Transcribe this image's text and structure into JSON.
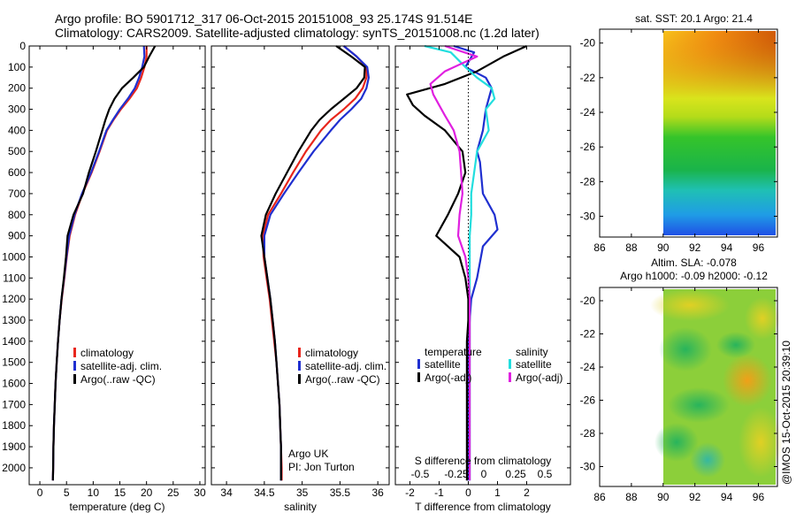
{
  "header": {
    "line1": "Argo profile: BO 5901712_317 06-Oct-2015 20151008_93 25.174S 91.514E",
    "line2": "Climatology: CARS2009. Satellite-adjusted climatology: synTS_20151008.nc (1.2d later)"
  },
  "credit": "@IMOS 15-Oct-2015 20:39:10",
  "colors": {
    "clim": "#e8261c",
    "sat": "#1f2fd0",
    "argo": "#000000",
    "sat_s": "#22dede",
    "argo_s": "#e020e0"
  },
  "chart_data": [
    {
      "type": "line",
      "name": "temperature-profile",
      "xlabel": "temperature (deg C)",
      "ylabel": "",
      "xlim": [
        -2,
        31
      ],
      "ylim": [
        0,
        2080
      ],
      "xticks": [
        0,
        5,
        10,
        15,
        20,
        25,
        30
      ],
      "yticks": [
        0,
        100,
        200,
        300,
        400,
        500,
        600,
        700,
        800,
        900,
        1000,
        1100,
        1200,
        1300,
        1400,
        1500,
        1600,
        1700,
        1800,
        1900,
        2000
      ],
      "legend": [
        "climatology",
        "satellite-adj. clim.",
        "Argo(..raw -QC)"
      ],
      "series": [
        {
          "name": "climatology",
          "color": "clim",
          "x": [
            20,
            20,
            19.6,
            19,
            18.2,
            16.8,
            15.2,
            13.8,
            12.6,
            11.2,
            9.7,
            8,
            6.6,
            5.6,
            5.05,
            4.6,
            4.1,
            3.7,
            3.4,
            3.15,
            2.95,
            2.8,
            2.65,
            2.55,
            2.5,
            2.45
          ],
          "y": [
            0,
            50,
            100,
            150,
            200,
            250,
            300,
            350,
            400,
            500,
            600,
            700,
            800,
            900,
            1000,
            1100,
            1200,
            1300,
            1400,
            1500,
            1600,
            1700,
            1800,
            1900,
            2000,
            2060
          ]
        },
        {
          "name": "satellite-adj. clim.",
          "color": "sat",
          "x": [
            19.5,
            19.6,
            19.2,
            18.6,
            17.8,
            16.5,
            15,
            13.7,
            12.5,
            11.1,
            9.6,
            7.9,
            6.5,
            5.5,
            5,
            4.55,
            4.05,
            3.7,
            3.4,
            3.15,
            2.95,
            2.8,
            2.65,
            2.55,
            2.5,
            2.45
          ],
          "y": [
            0,
            50,
            100,
            150,
            200,
            250,
            300,
            350,
            400,
            500,
            600,
            700,
            800,
            900,
            1000,
            1100,
            1200,
            1300,
            1400,
            1500,
            1600,
            1700,
            1800,
            1900,
            2000,
            2060
          ]
        },
        {
          "name": "Argo(..raw -QC)",
          "color": "argo",
          "x": [
            21.6,
            20.5,
            19.5,
            17.5,
            15.4,
            14,
            13,
            12.3,
            11.7,
            10.5,
            9.2,
            8.1,
            6.3,
            5.2,
            4.9,
            4.5,
            4.05,
            3.7,
            3.4,
            3.15,
            2.95,
            2.8,
            2.65,
            2.55,
            2.5,
            2.45
          ],
          "y": [
            0,
            50,
            100,
            150,
            200,
            250,
            300,
            350,
            400,
            500,
            600,
            700,
            800,
            900,
            1000,
            1100,
            1200,
            1300,
            1400,
            1500,
            1600,
            1700,
            1800,
            1900,
            2000,
            2060
          ]
        }
      ]
    },
    {
      "type": "line",
      "name": "salinity-profile",
      "xlabel": "salinity",
      "ylabel": "",
      "xlim": [
        33.8,
        36.15
      ],
      "ylim": [
        0,
        2080
      ],
      "xticks": [
        34,
        34.5,
        35,
        35.5,
        36
      ],
      "legend": [
        "climatology",
        "satellite-adj. clim.",
        "Argo(..raw -QC)"
      ],
      "annotation": [
        "Argo UK",
        "PI: Jon Turton"
      ],
      "series": [
        {
          "name": "climatology",
          "color": "clim",
          "x": [
            35.55,
            35.72,
            35.85,
            35.85,
            35.8,
            35.7,
            35.55,
            35.38,
            35.25,
            35.05,
            34.88,
            34.72,
            34.55,
            34.48,
            34.49,
            34.53,
            34.57,
            34.6,
            34.63,
            34.66,
            34.68,
            34.7,
            34.71,
            34.72,
            34.73,
            34.73
          ],
          "y": [
            0,
            50,
            100,
            150,
            200,
            250,
            300,
            350,
            400,
            500,
            600,
            700,
            800,
            900,
            1000,
            1100,
            1200,
            1300,
            1400,
            1500,
            1600,
            1700,
            1800,
            1900,
            2000,
            2060
          ]
        },
        {
          "name": "satellite-adj. clim.",
          "color": "sat",
          "x": [
            35.55,
            35.72,
            35.86,
            35.88,
            35.85,
            35.78,
            35.65,
            35.5,
            35.38,
            35.15,
            34.95,
            34.76,
            34.58,
            34.5,
            34.5,
            34.54,
            34.58,
            34.61,
            34.64,
            34.66,
            34.68,
            34.7,
            34.71,
            34.72,
            34.72,
            34.72
          ],
          "y": [
            0,
            50,
            100,
            150,
            200,
            250,
            300,
            350,
            400,
            500,
            600,
            700,
            800,
            900,
            1000,
            1100,
            1200,
            1300,
            1400,
            1500,
            1600,
            1700,
            1800,
            1900,
            2000,
            2060
          ]
        },
        {
          "name": "Argo(..raw -QC)",
          "color": "argo",
          "x": [
            35.45,
            35.65,
            35.83,
            35.82,
            35.72,
            35.55,
            35.38,
            35.23,
            35.12,
            34.95,
            34.8,
            34.65,
            34.52,
            34.46,
            34.5,
            34.54,
            34.58,
            34.61,
            34.64,
            34.66,
            34.68,
            34.7,
            34.71,
            34.72,
            34.72,
            34.72
          ],
          "y": [
            0,
            50,
            100,
            150,
            200,
            250,
            300,
            350,
            400,
            500,
            600,
            700,
            800,
            900,
            1000,
            1100,
            1200,
            1300,
            1400,
            1500,
            1600,
            1700,
            1800,
            1900,
            2000,
            2060
          ]
        }
      ]
    },
    {
      "type": "line",
      "name": "difference-profile",
      "xlabel": "T difference from climatology",
      "xlabel_top": "S difference from climatology",
      "xlim": [
        -2.5,
        3.5
      ],
      "ylim": [
        0,
        2080
      ],
      "xticks": [
        -2,
        -1,
        0,
        1,
        2
      ],
      "top_tick_labels": [
        "-0.5",
        "-0.25",
        "0",
        "0.25",
        "0.5"
      ],
      "legend_temperature": [
        "temperature",
        "satellite",
        "Argo(-adj)"
      ],
      "legend_salinity": [
        "salinity",
        "satellite",
        "Argo(-adj)"
      ],
      "series": [
        {
          "name": "T satellite",
          "color": "sat",
          "x": [
            -0.5,
            0.2,
            -0.1,
            0.6,
            0.8,
            0.7,
            0.6,
            0.5,
            0.4,
            0.3,
            0.4,
            0.5,
            0.9,
            1.0,
            0.5,
            0.3,
            0.1,
            0.05,
            0,
            0,
            0,
            0,
            0,
            0,
            0,
            0
          ],
          "y": [
            0,
            30,
            100,
            150,
            200,
            250,
            300,
            400,
            450,
            500,
            550,
            700,
            800,
            870,
            950,
            1100,
            1200,
            1300,
            1400,
            1500,
            1600,
            1700,
            1800,
            1900,
            2000,
            2060
          ]
        },
        {
          "name": "T Argo(-adj)",
          "color": "argo",
          "x": [
            2.0,
            1.2,
            0.3,
            -0.8,
            -2.1,
            -1.9,
            -1.5,
            -0.8,
            -0.5,
            -0.2,
            -0.1,
            -0.35,
            -0.7,
            -1.1,
            -0.3,
            -0.1,
            0,
            0,
            -0.05,
            -0.05,
            -0.05,
            -0.05,
            -0.05,
            -0.05,
            -0.05,
            -0.05
          ],
          "y": [
            0,
            50,
            120,
            180,
            230,
            280,
            330,
            400,
            450,
            500,
            600,
            700,
            800,
            900,
            1000,
            1100,
            1200,
            1300,
            1400,
            1500,
            1600,
            1700,
            1800,
            1900,
            2000,
            2060
          ]
        },
        {
          "name": "S satellite",
          "color": "sat_s",
          "x": [
            -1.5,
            -0.6,
            -0.1,
            0.3,
            0.8,
            0.9,
            0.6,
            0.7,
            0.5,
            0.3,
            0.2,
            0.1,
            0.1,
            0.05,
            0.05,
            0.05,
            0.05,
            0.05,
            0.05,
            0.05,
            0.05,
            0.05,
            0.05,
            0.05,
            0.05,
            0.05
          ],
          "y": [
            0,
            30,
            100,
            150,
            200,
            250,
            300,
            400,
            450,
            500,
            600,
            700,
            800,
            900,
            1000,
            1100,
            1200,
            1300,
            1400,
            1500,
            1600,
            1700,
            1800,
            1900,
            2000,
            2060
          ]
        },
        {
          "name": "S Argo(-adj)",
          "color": "argo_s",
          "x": [
            -0.8,
            0.3,
            -0.8,
            -1.3,
            -1.2,
            -1.0,
            -0.8,
            -0.5,
            -0.4,
            -0.3,
            -0.25,
            -0.2,
            -0.3,
            -0.35,
            -0.1,
            0,
            0.05,
            0.05,
            0.05,
            0.05,
            0.05,
            0.05,
            0.05,
            0.05,
            0.05,
            0.05
          ],
          "y": [
            0,
            50,
            120,
            180,
            230,
            280,
            330,
            400,
            450,
            500,
            600,
            700,
            800,
            900,
            1000,
            1100,
            1200,
            1300,
            1400,
            1500,
            1600,
            1700,
            1800,
            1900,
            2000,
            2060
          ]
        }
      ]
    },
    {
      "type": "heatmap",
      "name": "sst-map",
      "title": "sat. SST: 20.1  Argo: 21.4",
      "xlim": [
        86,
        97.2
      ],
      "ylim": [
        -31.2,
        -19.2
      ],
      "xticks": [
        86,
        88,
        90,
        92,
        94,
        96
      ],
      "yticks": [
        -20,
        -22,
        -24,
        -26,
        -28,
        -30
      ],
      "data_xlim": [
        90,
        97.2
      ]
    },
    {
      "type": "heatmap",
      "name": "sla-map",
      "title": "Altim. SLA: -0.078",
      "subtitle": "Argo h1000: -0.09  h2000: -0.12",
      "xlim": [
        86,
        97.2
      ],
      "ylim": [
        -31.2,
        -19.2
      ],
      "xticks": [
        86,
        88,
        90,
        92,
        94,
        96
      ],
      "yticks": [
        -20,
        -22,
        -24,
        -26,
        -28,
        -30
      ],
      "data_xlim": [
        90,
        97.2
      ]
    }
  ]
}
